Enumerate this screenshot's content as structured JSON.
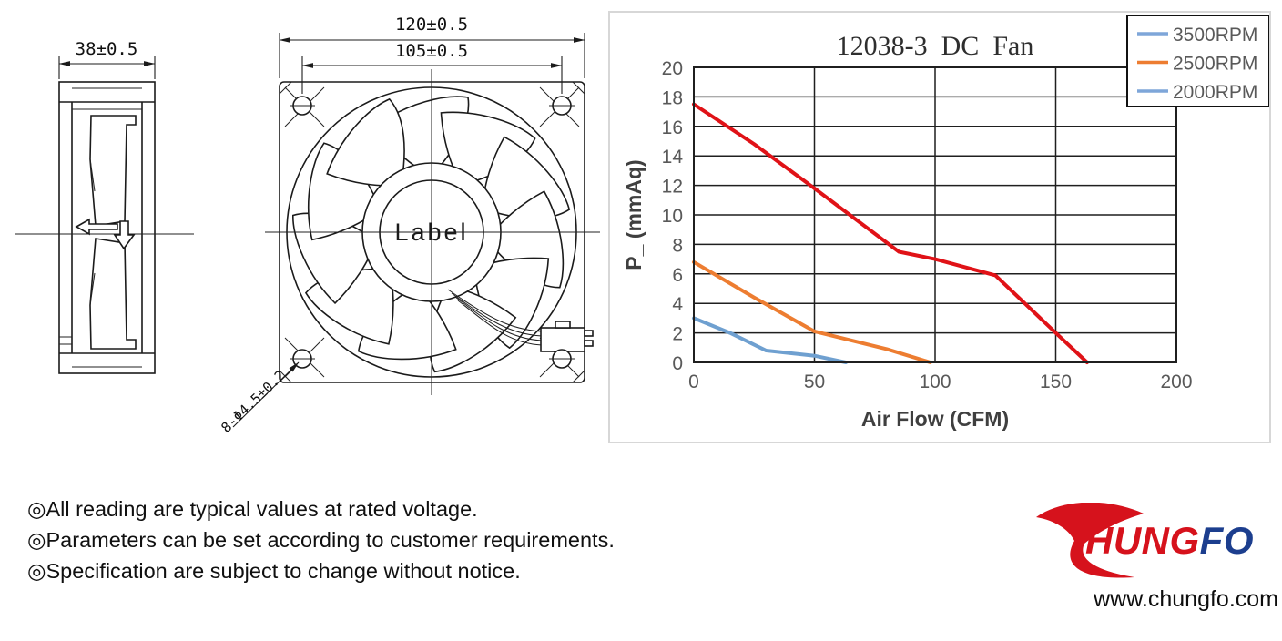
{
  "drawing": {
    "side_view": {
      "dim": "38±0.5"
    },
    "front_view": {
      "dim_outer": "120±0.5",
      "dim_holes": "105±0.5",
      "holes_note": "8-Φ4.5±0.2",
      "hub_label": "Label"
    }
  },
  "chart_data": {
    "type": "line",
    "title": "12038-3  DC  Fan",
    "xlabel": "Air Flow (CFM)",
    "ylabel": "P_ (mmAq)",
    "xlim": [
      0,
      200
    ],
    "ylim": [
      0,
      20
    ],
    "xtick_step": 50,
    "ytick_step": 2,
    "grid": true,
    "legend_position": "top-right",
    "series": [
      {
        "name": "3500RPM",
        "color": "#e01217",
        "legend_color": "#7ea6d9",
        "points": [
          [
            0,
            17.5
          ],
          [
            25,
            14.8
          ],
          [
            50,
            11.8
          ],
          [
            85,
            7.5
          ],
          [
            100,
            7.0
          ],
          [
            125,
            5.9
          ],
          [
            150,
            2.0
          ],
          [
            163,
            0
          ]
        ]
      },
      {
        "name": "2500RPM",
        "color": "#ed7d31",
        "legend_color": "#ed7d31",
        "points": [
          [
            0,
            6.8
          ],
          [
            25,
            4.4
          ],
          [
            50,
            2.1
          ],
          [
            60,
            1.7
          ],
          [
            80,
            0.9
          ],
          [
            98,
            0
          ]
        ]
      },
      {
        "name": "2000RPM",
        "color": "#6fa0d0",
        "legend_color": "#7ea6d9",
        "points": [
          [
            0,
            3.0
          ],
          [
            15,
            2.0
          ],
          [
            30,
            0.8
          ],
          [
            50,
            0.45
          ],
          [
            63,
            0
          ]
        ]
      }
    ]
  },
  "notes": [
    "◎All reading are typical values at rated voltage.",
    "◎Parameters can be set according to customer requirements.",
    "◎Specification are subject to change without notice."
  ],
  "logo": {
    "text": "CHUNGFO",
    "red_part": "HUNG",
    "blue_part": "FO",
    "url": "www.chungfo.com",
    "red": "#d6121c",
    "blue": "#1c3e8e"
  }
}
